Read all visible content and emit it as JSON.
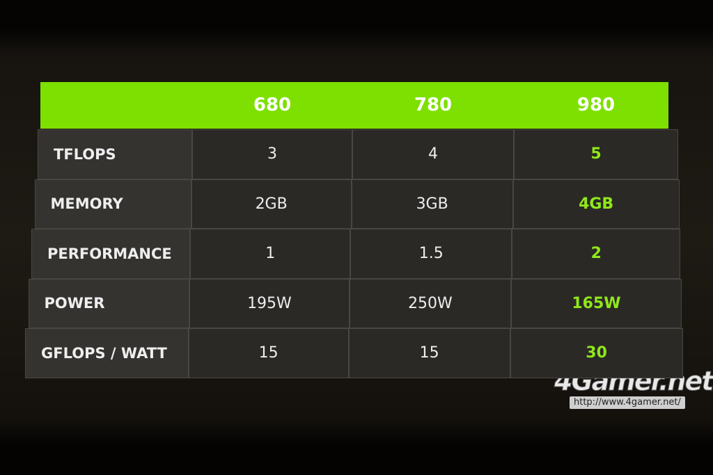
{
  "table": {
    "columns": [
      "680",
      "780",
      "980"
    ],
    "rows": [
      {
        "label": "TFLOPS",
        "cells": [
          "3",
          "4",
          "5"
        ]
      },
      {
        "label": "MEMORY",
        "cells": [
          "2GB",
          "3GB",
          "4GB"
        ]
      },
      {
        "label": "PERFORMANCE",
        "cells": [
          "1",
          "1.5",
          "2"
        ]
      },
      {
        "label": "POWER",
        "cells": [
          "195W",
          "250W",
          "165W"
        ]
      },
      {
        "label": "GFLOPS / WATT",
        "cells": [
          "15",
          "15",
          "30"
        ]
      }
    ]
  },
  "watermark": {
    "logo": "4Gamer.net",
    "url": "http://www.4gamer.net/"
  }
}
